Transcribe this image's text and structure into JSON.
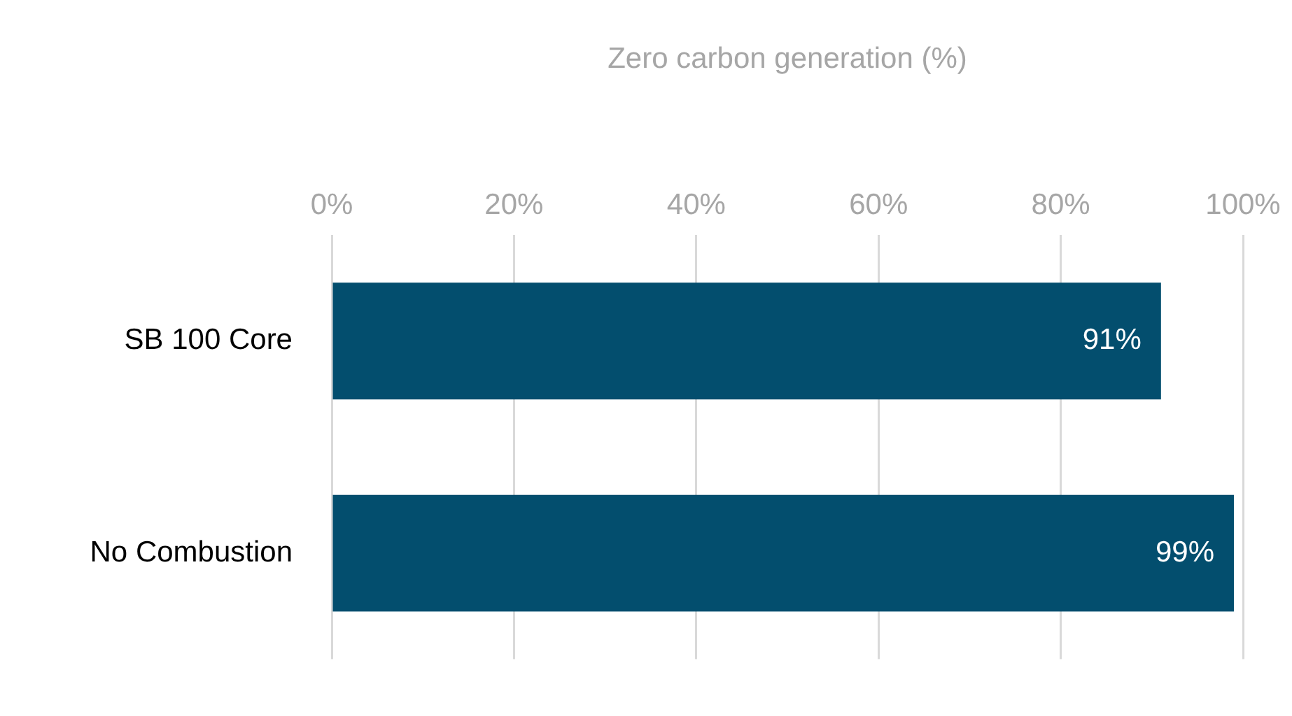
{
  "chart_data": {
    "type": "bar",
    "orientation": "horizontal",
    "xlabel": "Zero carbon generation (%)",
    "categories": [
      "SB 100 Core",
      "No Combustion"
    ],
    "values": [
      91,
      99
    ],
    "color": "#034e6e",
    "value_labels": [
      "91%",
      "99%"
    ],
    "xlim": [
      0,
      100
    ],
    "xticks": [
      {
        "value": 0,
        "label": "0%"
      },
      {
        "value": 20,
        "label": "20%"
      },
      {
        "value": 40,
        "label": "40%"
      },
      {
        "value": 60,
        "label": "60%"
      },
      {
        "value": 80,
        "label": "80%"
      },
      {
        "value": 100,
        "label": "100%"
      }
    ],
    "grid": "x",
    "legend": false
  }
}
